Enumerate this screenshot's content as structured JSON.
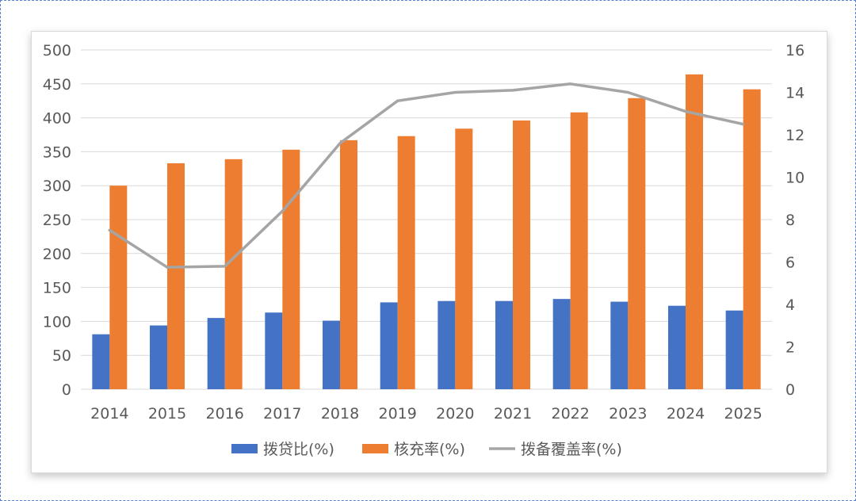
{
  "colors": {
    "bar1": "#4472C4",
    "bar2": "#ED7D31",
    "line": "#A5A5A5",
    "grid": "#D9D9D9",
    "text": "#595959"
  },
  "chart_data": {
    "type": "bar",
    "title": "",
    "categories": [
      "2014",
      "2015",
      "2016",
      "2017",
      "2018",
      "2019",
      "2020",
      "2021",
      "2022",
      "2023",
      "2024",
      "2025"
    ],
    "series": [
      {
        "name": "拨贷比(%)",
        "type": "bar",
        "axis": "left",
        "values": [
          81,
          94,
          105,
          113,
          101,
          128,
          130,
          130,
          133,
          129,
          123,
          116
        ]
      },
      {
        "name": "核充率(%)",
        "type": "bar",
        "axis": "left",
        "values": [
          300,
          333,
          339,
          353,
          367,
          373,
          384,
          396,
          408,
          429,
          464,
          442
        ]
      },
      {
        "name": "拨备覆盖率(%)",
        "type": "line",
        "axis": "right",
        "values": [
          7.5,
          5.75,
          5.8,
          8.4,
          11.6,
          13.6,
          14.0,
          14.1,
          14.4,
          14.0,
          13.1,
          12.5
        ]
      }
    ],
    "y_left": {
      "min": 0,
      "max": 500,
      "step": 50,
      "ticks": [
        "0",
        "50",
        "100",
        "150",
        "200",
        "250",
        "300",
        "350",
        "400",
        "450",
        "500"
      ]
    },
    "y_right": {
      "min": 0,
      "max": 16,
      "step": 2,
      "ticks": [
        "0",
        "2",
        "4",
        "6",
        "8",
        "10",
        "12",
        "14",
        "16"
      ]
    },
    "grid": true,
    "legend": "bottom"
  }
}
